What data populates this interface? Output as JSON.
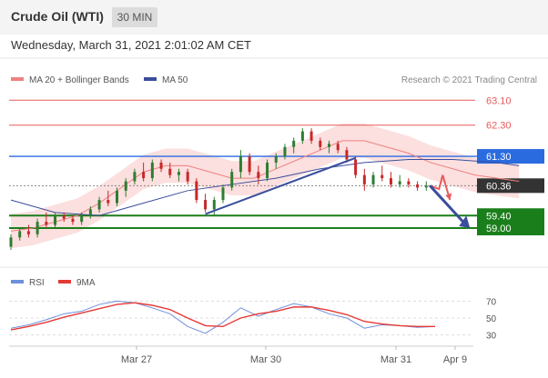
{
  "header": {
    "title": "Crude Oil (WTI)",
    "timeframe": "30 MIN",
    "datetime": "Wednesday, March 31, 2021 2:01:02 AM CET"
  },
  "legend": {
    "ma20_label": "MA 20 + Bollinger Bands",
    "ma50_label": "MA 50",
    "credit": "Research © 2021 Trading Central"
  },
  "rsi_legend": {
    "rsi_label": "RSI",
    "ma9_label": "9MA"
  },
  "colors": {
    "ma20": "#f08080",
    "ma50": "#3a4e9c",
    "band": "#fbd4d4",
    "resistance_strong": "#2a6be0",
    "support": "#1a7f1a",
    "last_price": "#333333",
    "red_level": "#e85a5a",
    "up_candle": "#2e7d32",
    "down_candle": "#c62828",
    "rsi": "#6f8fdc",
    "rsi_ma": "#e53935"
  },
  "chart_data": [
    {
      "type": "candlestick",
      "xlabel": "",
      "ylabel": "",
      "x_ticks": [
        "Mar 27",
        "Mar 30",
        "Mar 31",
        "Apr 9"
      ],
      "ylim": [
        58.3,
        63.4
      ],
      "levels": [
        {
          "name": "resistance",
          "value": 63.1,
          "label": "63.10",
          "style": "red-line"
        },
        {
          "name": "resistance",
          "value": 62.3,
          "label": "62.30",
          "style": "red-line"
        },
        {
          "name": "resistance",
          "value": 61.3,
          "label": "61.30",
          "style": "blue-box"
        },
        {
          "name": "last-price",
          "value": 60.36,
          "label": "60.36",
          "style": "dark-box"
        },
        {
          "name": "support",
          "value": 59.4,
          "label": "59.40",
          "style": "green-box"
        },
        {
          "name": "support",
          "value": 59.0,
          "label": "59.00",
          "style": "green-box"
        }
      ],
      "series": [
        {
          "name": "MA 20 + Bollinger Bands",
          "x": [
            0,
            5,
            10,
            15,
            20,
            25,
            30,
            35,
            40,
            45,
            50,
            55,
            60,
            65,
            70,
            75,
            80,
            85,
            90,
            95,
            100,
            105,
            110,
            115
          ],
          "values": [
            58.9,
            59.0,
            59.2,
            59.4,
            59.8,
            60.3,
            60.8,
            61.0,
            61.0,
            60.8,
            60.6,
            60.6,
            60.9,
            61.2,
            61.5,
            61.8,
            61.8,
            61.6,
            61.4,
            61.1,
            60.9,
            60.7,
            60.6,
            60.5
          ]
        },
        {
          "name": "MA 50",
          "x": [
            0,
            10,
            20,
            30,
            40,
            50,
            60,
            70,
            80,
            90,
            100,
            110,
            115
          ],
          "values": [
            59.9,
            59.5,
            59.4,
            59.8,
            60.2,
            60.4,
            60.6,
            60.9,
            61.1,
            61.2,
            61.2,
            61.1,
            61.0
          ]
        }
      ],
      "candles": [
        {
          "x": 0,
          "o": 58.4,
          "h": 58.8,
          "l": 58.3,
          "c": 58.7
        },
        {
          "x": 2,
          "o": 58.7,
          "h": 59.0,
          "l": 58.6,
          "c": 58.9
        },
        {
          "x": 4,
          "o": 58.9,
          "h": 59.1,
          "l": 58.7,
          "c": 58.8
        },
        {
          "x": 6,
          "o": 58.8,
          "h": 59.3,
          "l": 58.7,
          "c": 59.2
        },
        {
          "x": 8,
          "o": 59.2,
          "h": 59.5,
          "l": 59.0,
          "c": 59.1
        },
        {
          "x": 10,
          "o": 59.1,
          "h": 59.5,
          "l": 59.0,
          "c": 59.4
        },
        {
          "x": 12,
          "o": 59.4,
          "h": 59.5,
          "l": 59.2,
          "c": 59.3
        },
        {
          "x": 14,
          "o": 59.3,
          "h": 59.4,
          "l": 59.1,
          "c": 59.2
        },
        {
          "x": 16,
          "o": 59.2,
          "h": 59.5,
          "l": 59.1,
          "c": 59.4
        },
        {
          "x": 18,
          "o": 59.4,
          "h": 59.7,
          "l": 59.3,
          "c": 59.6
        },
        {
          "x": 20,
          "o": 59.6,
          "h": 60.0,
          "l": 59.5,
          "c": 59.9
        },
        {
          "x": 22,
          "o": 59.9,
          "h": 60.2,
          "l": 59.7,
          "c": 59.8
        },
        {
          "x": 24,
          "o": 59.8,
          "h": 60.3,
          "l": 59.7,
          "c": 60.2
        },
        {
          "x": 26,
          "o": 60.2,
          "h": 60.6,
          "l": 60.0,
          "c": 60.5
        },
        {
          "x": 28,
          "o": 60.5,
          "h": 60.9,
          "l": 60.4,
          "c": 60.8
        },
        {
          "x": 30,
          "o": 60.8,
          "h": 61.1,
          "l": 60.5,
          "c": 60.6
        },
        {
          "x": 32,
          "o": 60.6,
          "h": 61.2,
          "l": 60.5,
          "c": 61.1
        },
        {
          "x": 34,
          "o": 61.1,
          "h": 61.2,
          "l": 60.8,
          "c": 60.9
        },
        {
          "x": 36,
          "o": 60.9,
          "h": 61.1,
          "l": 60.6,
          "c": 60.7
        },
        {
          "x": 38,
          "o": 60.7,
          "h": 60.9,
          "l": 60.5,
          "c": 60.8
        },
        {
          "x": 40,
          "o": 60.8,
          "h": 60.9,
          "l": 60.4,
          "c": 60.5
        },
        {
          "x": 42,
          "o": 60.5,
          "h": 60.6,
          "l": 59.8,
          "c": 59.9
        },
        {
          "x": 44,
          "o": 59.9,
          "h": 60.1,
          "l": 59.5,
          "c": 59.6
        },
        {
          "x": 46,
          "o": 59.6,
          "h": 60.0,
          "l": 59.4,
          "c": 59.9
        },
        {
          "x": 48,
          "o": 59.9,
          "h": 60.4,
          "l": 59.8,
          "c": 60.3
        },
        {
          "x": 50,
          "o": 60.3,
          "h": 60.9,
          "l": 60.2,
          "c": 60.8
        },
        {
          "x": 52,
          "o": 60.8,
          "h": 61.5,
          "l": 60.6,
          "c": 61.3
        },
        {
          "x": 54,
          "o": 61.3,
          "h": 61.4,
          "l": 60.7,
          "c": 60.8
        },
        {
          "x": 56,
          "o": 60.8,
          "h": 61.0,
          "l": 60.4,
          "c": 60.6
        },
        {
          "x": 58,
          "o": 60.6,
          "h": 61.2,
          "l": 60.5,
          "c": 61.1
        },
        {
          "x": 60,
          "o": 61.1,
          "h": 61.4,
          "l": 60.9,
          "c": 61.3
        },
        {
          "x": 62,
          "o": 61.3,
          "h": 61.7,
          "l": 61.2,
          "c": 61.6
        },
        {
          "x": 64,
          "o": 61.6,
          "h": 61.9,
          "l": 61.4,
          "c": 61.8
        },
        {
          "x": 66,
          "o": 61.8,
          "h": 62.2,
          "l": 61.7,
          "c": 62.1
        },
        {
          "x": 68,
          "o": 62.1,
          "h": 62.2,
          "l": 61.7,
          "c": 61.8
        },
        {
          "x": 70,
          "o": 61.8,
          "h": 61.9,
          "l": 61.5,
          "c": 61.6
        },
        {
          "x": 72,
          "o": 61.6,
          "h": 61.8,
          "l": 61.4,
          "c": 61.7
        },
        {
          "x": 74,
          "o": 61.7,
          "h": 61.8,
          "l": 61.4,
          "c": 61.5
        },
        {
          "x": 76,
          "o": 61.5,
          "h": 61.6,
          "l": 61.1,
          "c": 61.2
        },
        {
          "x": 78,
          "o": 61.2,
          "h": 61.3,
          "l": 60.6,
          "c": 60.7
        },
        {
          "x": 80,
          "o": 60.7,
          "h": 60.9,
          "l": 60.2,
          "c": 60.4
        },
        {
          "x": 82,
          "o": 60.4,
          "h": 60.8,
          "l": 60.3,
          "c": 60.7
        },
        {
          "x": 84,
          "o": 60.7,
          "h": 61.0,
          "l": 60.5,
          "c": 60.6
        },
        {
          "x": 86,
          "o": 60.6,
          "h": 60.8,
          "l": 60.3,
          "c": 60.4
        },
        {
          "x": 88,
          "o": 60.4,
          "h": 60.7,
          "l": 60.3,
          "c": 60.5
        },
        {
          "x": 90,
          "o": 60.5,
          "h": 60.6,
          "l": 60.3,
          "c": 60.4
        },
        {
          "x": 92,
          "o": 60.4,
          "h": 60.5,
          "l": 60.2,
          "c": 60.3
        },
        {
          "x": 94,
          "o": 60.3,
          "h": 60.5,
          "l": 60.2,
          "c": 60.36
        }
      ]
    },
    {
      "type": "line",
      "xlabel": "",
      "ylabel": "",
      "ylim": [
        20,
        80
      ],
      "y_ticks": [
        30,
        50,
        70
      ],
      "series": [
        {
          "name": "RSI",
          "x": [
            0,
            4,
            8,
            12,
            16,
            20,
            24,
            28,
            32,
            36,
            40,
            44,
            48,
            52,
            56,
            60,
            64,
            68,
            72,
            76,
            80,
            84,
            88,
            92,
            96
          ],
          "values": [
            38,
            42,
            48,
            55,
            58,
            66,
            70,
            68,
            62,
            55,
            40,
            32,
            45,
            62,
            52,
            60,
            67,
            63,
            55,
            50,
            38,
            42,
            41,
            39,
            40
          ]
        },
        {
          "name": "9MA",
          "x": [
            0,
            4,
            8,
            12,
            16,
            20,
            24,
            28,
            32,
            36,
            40,
            44,
            48,
            52,
            56,
            60,
            64,
            68,
            72,
            76,
            80,
            84,
            88,
            92,
            96
          ],
          "values": [
            36,
            40,
            45,
            51,
            56,
            61,
            66,
            68,
            65,
            60,
            50,
            41,
            40,
            50,
            55,
            58,
            63,
            63,
            59,
            54,
            46,
            43,
            41,
            40,
            40
          ]
        }
      ]
    }
  ]
}
